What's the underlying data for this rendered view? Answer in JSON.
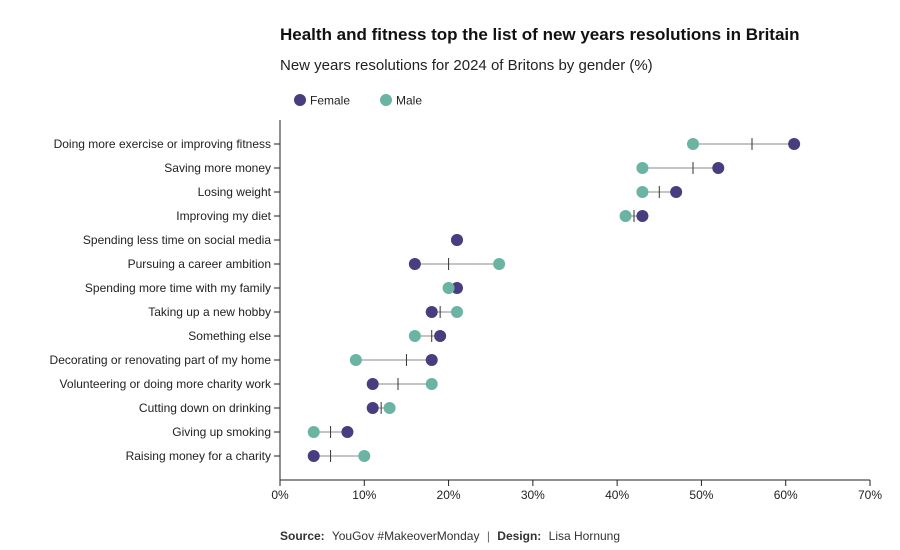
{
  "chart_data": {
    "type": "dumbbell",
    "title": "Health and fitness top the list of new years resolutions in Britain",
    "subtitle": "New years resolutions for 2024 of Britons by gender (%)",
    "series": [
      {
        "name": "Female",
        "color": "#483d7f"
      },
      {
        "name": "Male",
        "color": "#6bb3a3"
      }
    ],
    "x_ticks": [
      "0%",
      "10%",
      "20%",
      "30%",
      "40%",
      "50%",
      "60%",
      "70%"
    ],
    "xlim": [
      0,
      70
    ],
    "legend_position": "top-left",
    "grid": false,
    "marker_meaning": "midpoint",
    "categories": [
      {
        "label": "Doing more exercise or improving fitness",
        "female": 61,
        "male": 49,
        "mid": 56
      },
      {
        "label": "Saving more money",
        "female": 52,
        "male": 43,
        "mid": 49
      },
      {
        "label": "Losing weight",
        "female": 47,
        "male": 43,
        "mid": 45
      },
      {
        "label": "Improving my diet",
        "female": 43,
        "male": 41,
        "mid": 42
      },
      {
        "label": "Spending less time on social media",
        "female": 21,
        "male": 21,
        "mid": 21
      },
      {
        "label": "Pursuing a career ambition",
        "female": 16,
        "male": 26,
        "mid": 20
      },
      {
        "label": "Spending more time with my family",
        "female": 21,
        "male": 20,
        "mid": 20
      },
      {
        "label": "Taking up a new hobby",
        "female": 18,
        "male": 21,
        "mid": 19
      },
      {
        "label": "Something else",
        "female": 19,
        "male": 16,
        "mid": 18
      },
      {
        "label": "Decorating or renovating part of my home",
        "female": 18,
        "male": 9,
        "mid": 15
      },
      {
        "label": "Volunteering or doing more charity work",
        "female": 11,
        "male": 18,
        "mid": 14
      },
      {
        "label": "Cutting down on drinking",
        "female": 11,
        "male": 13,
        "mid": 12
      },
      {
        "label": "Giving up smoking",
        "female": 8,
        "male": 4,
        "mid": 6
      },
      {
        "label": "Raising money for a charity",
        "female": 4,
        "male": 10,
        "mid": 6
      }
    ]
  },
  "source": {
    "source_label": "Source:",
    "source_text": "YouGov #MakeoverMonday",
    "separator": "|",
    "design_label": "Design:",
    "design_text": "Lisa Hornung"
  }
}
